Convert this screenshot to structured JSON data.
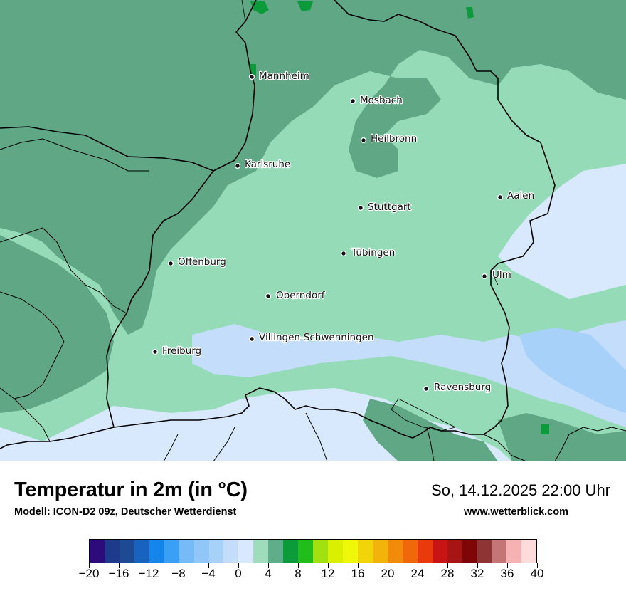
{
  "header": {
    "title": "Temperatur in 2m (in °C)",
    "subtitle": "Modell: ICON-D2 09z, Deutscher Wetterdienst",
    "datetime": "So, 14.12.2025 22:00 Uhr",
    "website": "www.wetterblick.com"
  },
  "map": {
    "region": "Baden-Württemberg",
    "cities": [
      {
        "name": "Mannheim"
      },
      {
        "name": "Mosbach"
      },
      {
        "name": "Heilbronn"
      },
      {
        "name": "Karlsruhe"
      },
      {
        "name": "Aalen"
      },
      {
        "name": "Stuttgart"
      },
      {
        "name": "Tübingen"
      },
      {
        "name": "Offenburg"
      },
      {
        "name": "Ulm"
      },
      {
        "name": "Oberndorf"
      },
      {
        "name": "Villingen-Schwenningen"
      },
      {
        "name": "Freiburg"
      },
      {
        "name": "Ravensburg"
      }
    ]
  },
  "legend": {
    "min": -20,
    "max": 40,
    "step": 2,
    "tick_labels": [
      "−20",
      "−16",
      "−12",
      "−8",
      "−4",
      "0",
      "4",
      "8",
      "12",
      "16",
      "20",
      "24",
      "28",
      "32",
      "36",
      "40"
    ],
    "colors": [
      "#2e0b7a",
      "#1e3a8a",
      "#1d4a92",
      "#1763bf",
      "#1485ea",
      "#3aa0f5",
      "#76baf8",
      "#90c6f8",
      "#a8d1fa",
      "#c4ddfb",
      "#d8e9fd",
      "#9edcbc",
      "#5fae8a",
      "#0b9b3b",
      "#21bd1b",
      "#a3e010",
      "#d9f000",
      "#f0f80a",
      "#f1d40a",
      "#f2b30a",
      "#f28a0a",
      "#f0680a",
      "#e83a0a",
      "#c81414",
      "#a71414",
      "#7e0606",
      "#8f3434",
      "#c47676",
      "#f4b2b2",
      "#fedcdc"
    ]
  }
}
